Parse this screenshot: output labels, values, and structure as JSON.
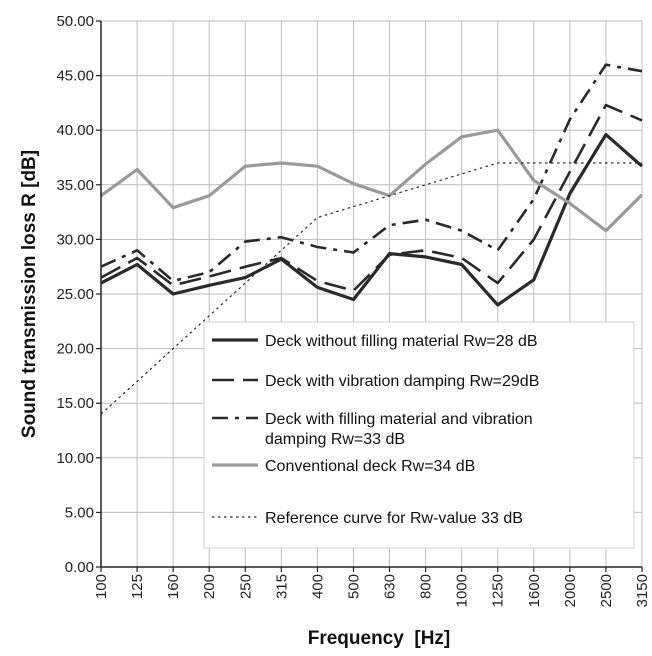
{
  "chart_data": {
    "type": "line",
    "title": "",
    "xlabel": "Frequency  [Hz]",
    "ylabel": "Sound transmission loss R [dB]",
    "categories": [
      "100",
      "125",
      "160",
      "200",
      "250",
      "315",
      "400",
      "500",
      "630",
      "800",
      "1000",
      "1250",
      "1600",
      "2000",
      "2500",
      "3150"
    ],
    "ylim": [
      0,
      50
    ],
    "yticks": [
      "0.00",
      "5.00",
      "10.00",
      "15.00",
      "20.00",
      "25.00",
      "30.00",
      "35.00",
      "40.00",
      "45.00",
      "50.00"
    ],
    "grid": true,
    "legend_position": "bottom-right",
    "series": [
      {
        "name": "Deck without filling material Rw=28 dB",
        "legend_lines": [
          "Deck without filling material Rw=28 dB"
        ],
        "style": "solid",
        "color": "#2a2a2a",
        "values": [
          26.0,
          27.7,
          25.0,
          25.8,
          26.5,
          28.2,
          25.6,
          24.5,
          28.7,
          28.4,
          27.7,
          24.0,
          26.3,
          34.2,
          39.6,
          36.7
        ]
      },
      {
        "name": "Deck with vibration damping Rw=29dB",
        "legend_lines": [
          "Deck with vibration damping Rw=29dB"
        ],
        "style": "long-dash",
        "color": "#2a2a2a",
        "values": [
          26.5,
          28.3,
          25.8,
          26.6,
          27.5,
          28.3,
          26.2,
          25.3,
          28.6,
          29.0,
          28.3,
          26.0,
          30.0,
          36.2,
          42.3,
          40.9
        ]
      },
      {
        "name": "Deck with filling material and vibration damping Rw=33 dB",
        "legend_lines": [
          "Deck with filling material and vibration",
          "damping Rw=33 dB"
        ],
        "style": "dash",
        "color": "#2a2a2a",
        "values": [
          27.5,
          29.0,
          26.2,
          27.0,
          29.8,
          30.2,
          29.3,
          28.8,
          31.3,
          31.8,
          30.8,
          29.0,
          33.7,
          41.0,
          46.0,
          45.4
        ]
      },
      {
        "name": "Conventional deck Rw=34 dB",
        "legend_lines": [
          "Conventional deck Rw=34 dB"
        ],
        "style": "solid-light",
        "color": "#9a9a9a",
        "values": [
          34.0,
          36.4,
          32.9,
          34.0,
          36.7,
          37.0,
          36.7,
          35.1,
          34.0,
          36.9,
          39.4,
          40.0,
          35.4,
          33.3,
          30.8,
          34.1
        ]
      },
      {
        "name": "Reference curve for Rw-value 33 dB",
        "legend_lines": [
          "Reference curve for Rw-value 33 dB"
        ],
        "style": "dotted",
        "color": "#2a2a2a",
        "values": [
          14.0,
          17.0,
          20.0,
          23.0,
          26.0,
          29.0,
          32.0,
          33.0,
          34.0,
          35.0,
          36.0,
          37.0,
          37.0,
          37.0,
          37.0,
          37.0
        ]
      }
    ]
  }
}
